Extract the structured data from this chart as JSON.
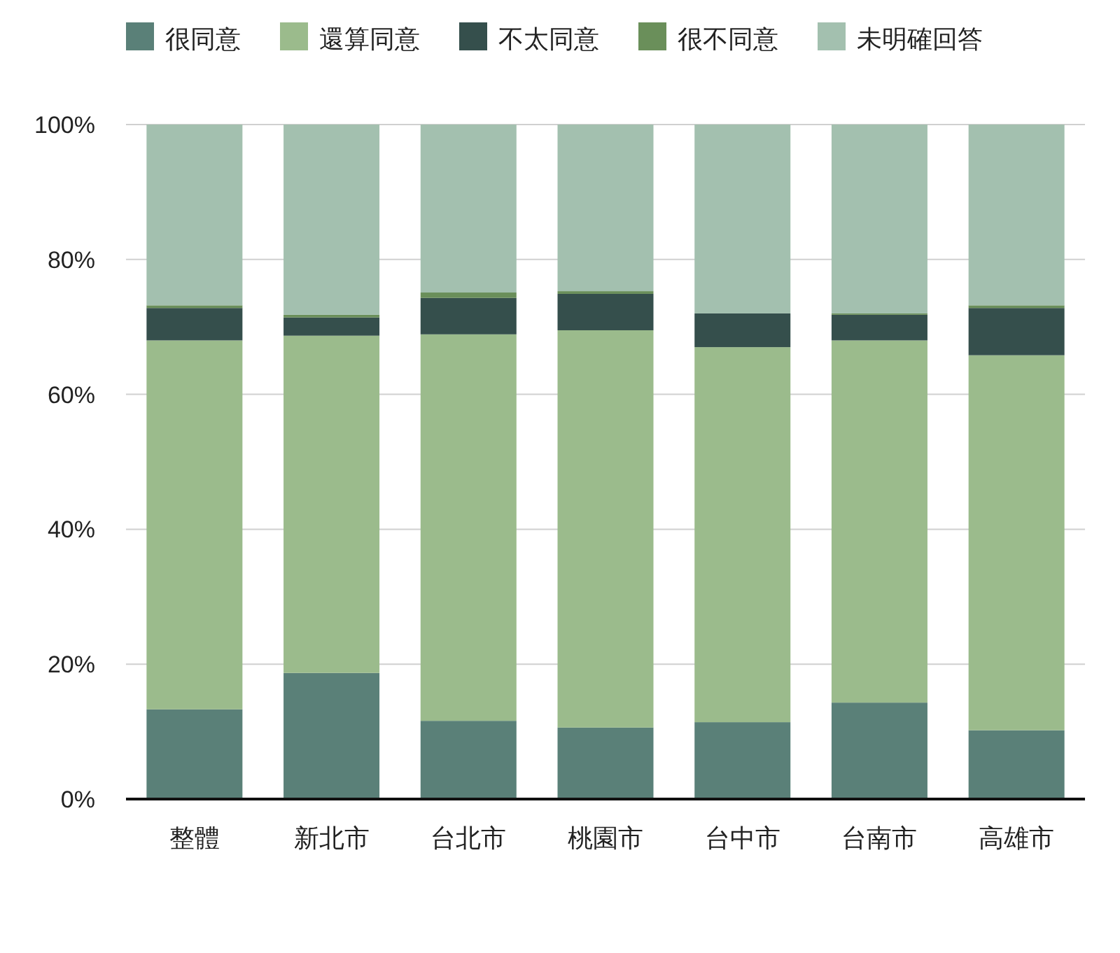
{
  "chart_data": {
    "type": "bar",
    "stacked": true,
    "categories": [
      "整體",
      "新北市",
      "台北市",
      "桃園市",
      "台中市",
      "台南市",
      "高雄市"
    ],
    "series": [
      {
        "name": "很同意",
        "color": "#5a8078",
        "values": [
          13.3,
          18.7,
          11.6,
          10.6,
          11.4,
          14.3,
          10.2
        ]
      },
      {
        "name": "還算同意",
        "color": "#9bbb8c",
        "values": [
          54.7,
          50.0,
          57.3,
          58.9,
          55.6,
          53.7,
          55.6
        ]
      },
      {
        "name": "不太同意",
        "color": "#354f4c",
        "values": [
          4.8,
          2.7,
          5.4,
          5.4,
          5.0,
          3.8,
          7.0
        ]
      },
      {
        "name": "很不同意",
        "color": "#6a8f5a",
        "values": [
          0.4,
          0.4,
          0.8,
          0.4,
          0.0,
          0.2,
          0.4
        ]
      },
      {
        "name": "未明確回答",
        "color": "#a3c0af",
        "values": [
          26.8,
          28.2,
          24.9,
          24.7,
          28.0,
          28.0,
          26.8
        ]
      }
    ],
    "ylim": [
      0,
      100
    ],
    "yticks": [
      {
        "value": 0,
        "label": "0%"
      },
      {
        "value": 20,
        "label": "20%"
      },
      {
        "value": 40,
        "label": "40%"
      },
      {
        "value": 60,
        "label": "60%"
      },
      {
        "value": 80,
        "label": "80%"
      },
      {
        "value": 100,
        "label": "100%"
      }
    ],
    "grid": "y",
    "legend": "top"
  }
}
